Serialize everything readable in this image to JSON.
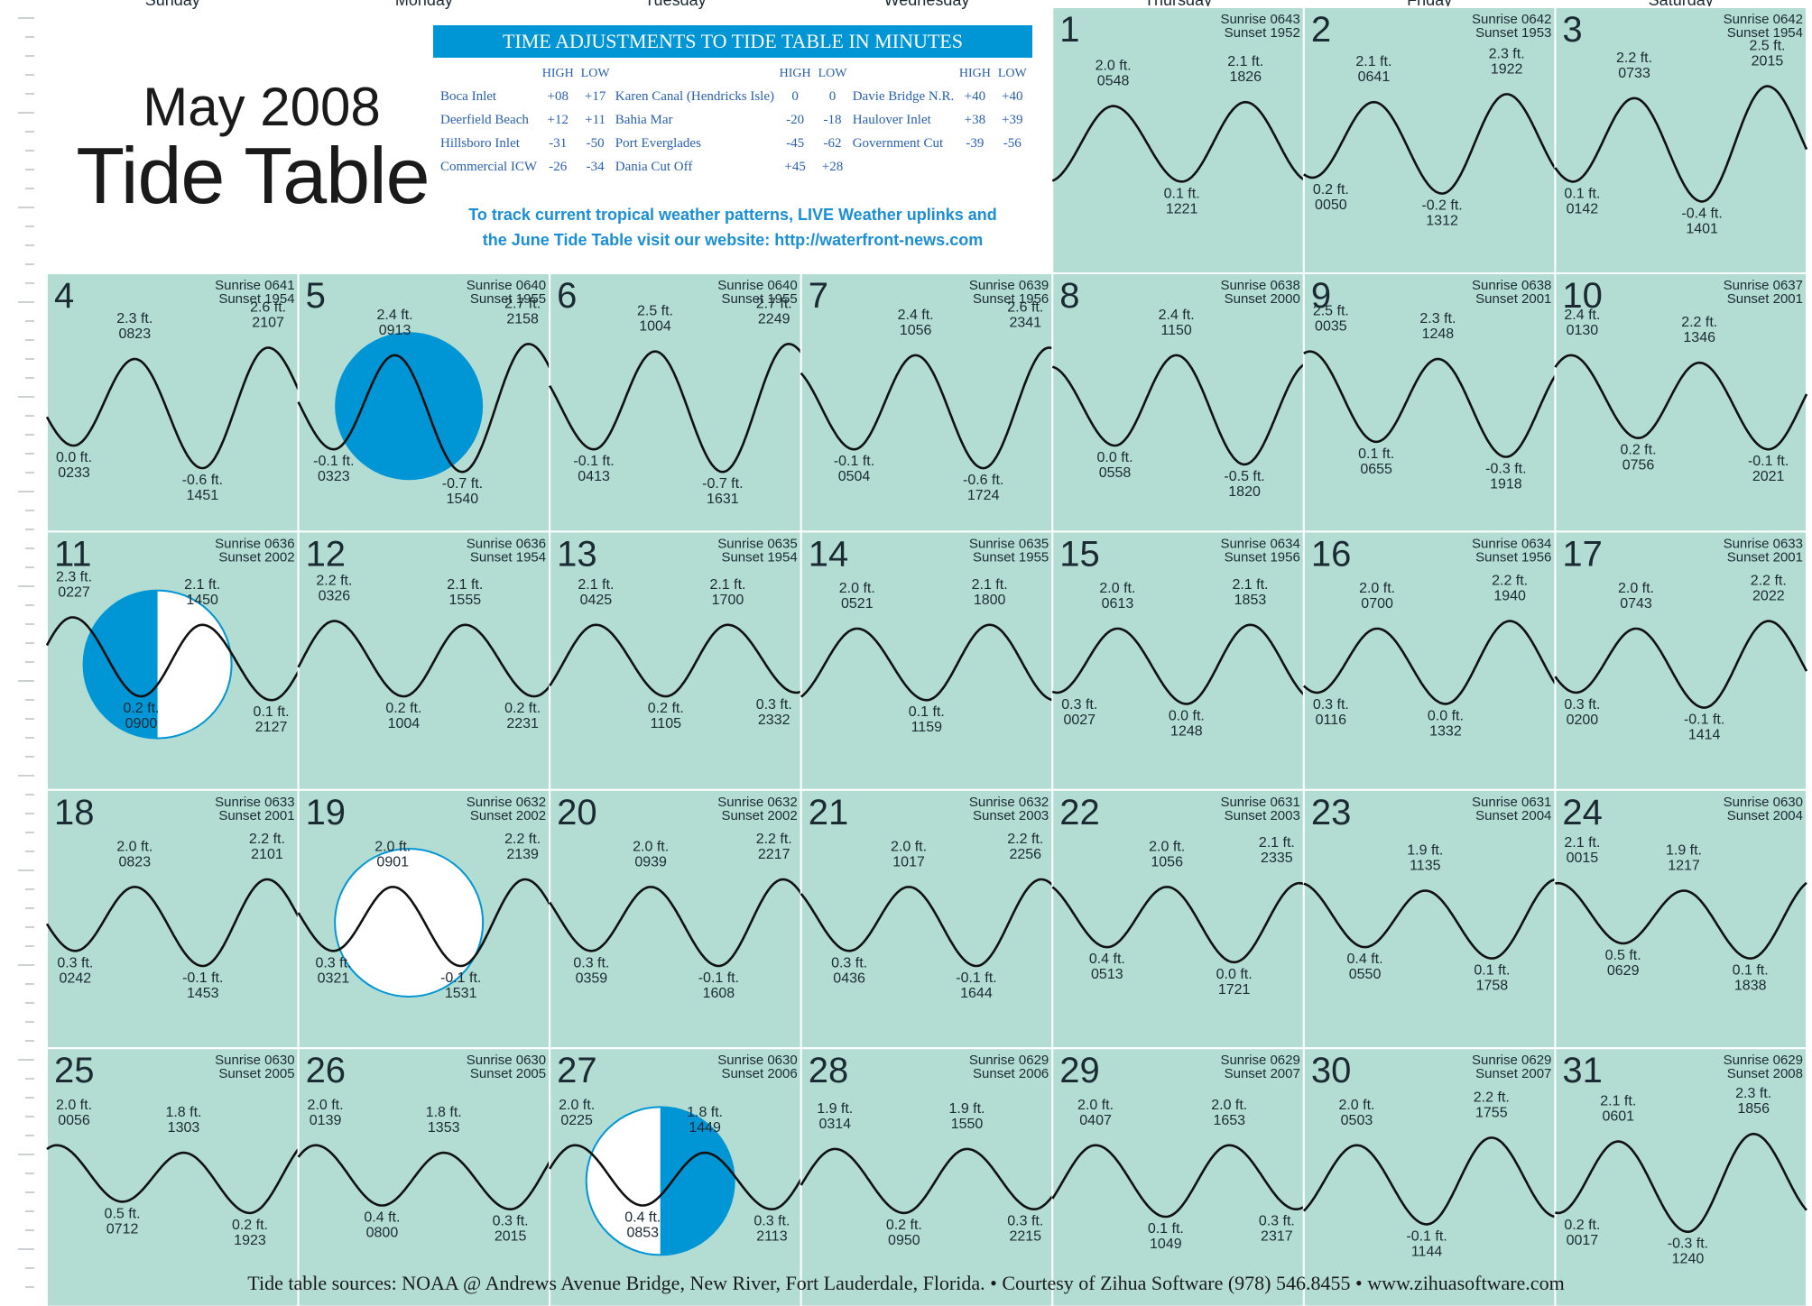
{
  "title": {
    "month": "May 2008",
    "main": "Tide Table"
  },
  "weekdays": [
    "Sunday",
    "Monday",
    "Tuesday",
    "Wednesday",
    "Thursday",
    "Friday",
    "Saturday"
  ],
  "adjustments": {
    "header": "TIME ADJUSTMENTS TO TIDE TABLE IN MINUTES",
    "col_high": "HIGH",
    "col_low": "LOW",
    "rows": [
      [
        {
          "name": "Boca Inlet",
          "high": "+08",
          "low": "+17"
        },
        {
          "name": "Karen Canal (Hendricks Isle)",
          "high": "0",
          "low": "0"
        },
        {
          "name": "Davie Bridge N.R.",
          "high": "+40",
          "low": "+40"
        }
      ],
      [
        {
          "name": "Deerfield Beach",
          "high": "+12",
          "low": "+11"
        },
        {
          "name": "Bahia Mar",
          "high": "-20",
          "low": "-18"
        },
        {
          "name": "Haulover Inlet",
          "high": "+38",
          "low": "+39"
        }
      ],
      [
        {
          "name": "Hillsboro Inlet",
          "high": "-31",
          "low": "-50"
        },
        {
          "name": "Port Everglades",
          "high": "-45",
          "low": "-62"
        },
        {
          "name": "Government Cut",
          "high": "-39",
          "low": "-56"
        }
      ],
      [
        {
          "name": "Commercial ICW",
          "high": "-26",
          "low": "-34"
        },
        {
          "name": "Dania Cut Off",
          "high": "+45",
          "low": "+28"
        },
        {
          "name": "",
          "high": "",
          "low": ""
        }
      ]
    ]
  },
  "web_note": {
    "line1": "To track current tropical weather patterns, LIVE Weather uplinks and",
    "line2": "the June Tide Table visit our website: http://waterfront-news.com"
  },
  "footer": "Tide table sources: NOAA @ Andrews Avenue Bridge, New River, Fort Lauderdale, Florida. • Courtesy of Zihua Software (978) 546.8455 • www.zihuasoftware.com",
  "colors": {
    "cell_bg": "#b3ddd3",
    "grid": "#ffffff",
    "curve": "#111111",
    "moon": "#0096d6",
    "accent": "#0096d6"
  },
  "chart_data": {
    "type": "line",
    "title": "Tide Table",
    "x_unit": "time (hhmm)",
    "y_unit": "ft",
    "first_weekday_index": 4,
    "moon_phases": [
      {
        "day": 5,
        "phase": "new"
      },
      {
        "day": 11,
        "phase": "first-quarter"
      },
      {
        "day": 19,
        "phase": "full"
      },
      {
        "day": 27,
        "phase": "last-quarter"
      }
    ],
    "days": [
      {
        "day": 1,
        "sunrise": "0643",
        "sunset": "1952",
        "tides": [
          [
            "0548",
            "2.0 ft."
          ],
          [
            "1221",
            "0.1 ft."
          ],
          [
            "1826",
            "2.1 ft."
          ]
        ]
      },
      {
        "day": 2,
        "sunrise": "0642",
        "sunset": "1953",
        "tides": [
          [
            "0050",
            "0.2 ft."
          ],
          [
            "0641",
            "2.1 ft."
          ],
          [
            "1312",
            "-0.2 ft."
          ],
          [
            "1922",
            "2.3 ft."
          ]
        ]
      },
      {
        "day": 3,
        "sunrise": "0642",
        "sunset": "1954",
        "tides": [
          [
            "0142",
            "0.1 ft."
          ],
          [
            "0733",
            "2.2 ft."
          ],
          [
            "1401",
            "-0.4 ft."
          ],
          [
            "2015",
            "2.5 ft."
          ]
        ]
      },
      {
        "day": 4,
        "sunrise": "0641",
        "sunset": "1954",
        "tides": [
          [
            "0233",
            "0.0 ft."
          ],
          [
            "0823",
            "2.3 ft."
          ],
          [
            "1451",
            "-0.6 ft."
          ],
          [
            "2107",
            "2.6 ft."
          ]
        ]
      },
      {
        "day": 5,
        "sunrise": "0640",
        "sunset": "1955",
        "tides": [
          [
            "0323",
            "-0.1 ft."
          ],
          [
            "0913",
            "2.4 ft."
          ],
          [
            "1540",
            "-0.7 ft."
          ],
          [
            "2158",
            "2.7 ft."
          ]
        ]
      },
      {
        "day": 6,
        "sunrise": "0640",
        "sunset": "1955",
        "tides": [
          [
            "0413",
            "-0.1 ft."
          ],
          [
            "1004",
            "2.5 ft."
          ],
          [
            "1631",
            "-0.7 ft."
          ],
          [
            "2249",
            "2.7 ft."
          ]
        ]
      },
      {
        "day": 7,
        "sunrise": "0639",
        "sunset": "1956",
        "tides": [
          [
            "0504",
            "-0.1 ft."
          ],
          [
            "1056",
            "2.4 ft."
          ],
          [
            "1724",
            "-0.6 ft."
          ],
          [
            "2341",
            "2.6 ft."
          ]
        ]
      },
      {
        "day": 8,
        "sunrise": "0638",
        "sunset": "2000",
        "tides": [
          [
            "0558",
            "0.0 ft."
          ],
          [
            "1150",
            "2.4 ft."
          ],
          [
            "1820",
            "-0.5 ft."
          ]
        ]
      },
      {
        "day": 9,
        "sunrise": "0638",
        "sunset": "2001",
        "tides": [
          [
            "0035",
            "2.5 ft."
          ],
          [
            "0655",
            "0.1 ft."
          ],
          [
            "1248",
            "2.3 ft."
          ],
          [
            "1918",
            "-0.3 ft."
          ]
        ]
      },
      {
        "day": 10,
        "sunrise": "0637",
        "sunset": "2001",
        "tides": [
          [
            "0130",
            "2.4 ft."
          ],
          [
            "0756",
            "0.2 ft."
          ],
          [
            "1346",
            "2.2 ft."
          ],
          [
            "2021",
            "-0.1 ft."
          ]
        ]
      },
      {
        "day": 11,
        "sunrise": "0636",
        "sunset": "2002",
        "tides": [
          [
            "0227",
            "2.3 ft."
          ],
          [
            "0900",
            "0.2 ft."
          ],
          [
            "1450",
            "2.1 ft."
          ],
          [
            "2127",
            "0.1 ft."
          ]
        ]
      },
      {
        "day": 12,
        "sunrise": "0636",
        "sunset": "1954",
        "tides": [
          [
            "0326",
            "2.2 ft."
          ],
          [
            "1004",
            "0.2 ft."
          ],
          [
            "1555",
            "2.1 ft."
          ],
          [
            "2231",
            "0.2 ft."
          ]
        ]
      },
      {
        "day": 13,
        "sunrise": "0635",
        "sunset": "1954",
        "tides": [
          [
            "0425",
            "2.1 ft."
          ],
          [
            "1105",
            "0.2 ft."
          ],
          [
            "1700",
            "2.1 ft."
          ],
          [
            "2332",
            "0.3 ft."
          ]
        ]
      },
      {
        "day": 14,
        "sunrise": "0635",
        "sunset": "1955",
        "tides": [
          [
            "0521",
            "2.0 ft."
          ],
          [
            "1159",
            "0.1 ft."
          ],
          [
            "1800",
            "2.1 ft."
          ]
        ]
      },
      {
        "day": 15,
        "sunrise": "0634",
        "sunset": "1956",
        "tides": [
          [
            "0027",
            "0.3 ft."
          ],
          [
            "0613",
            "2.0 ft."
          ],
          [
            "1248",
            "0.0 ft."
          ],
          [
            "1853",
            "2.1 ft."
          ]
        ]
      },
      {
        "day": 16,
        "sunrise": "0634",
        "sunset": "1956",
        "tides": [
          [
            "0116",
            "0.3 ft."
          ],
          [
            "0700",
            "2.0 ft."
          ],
          [
            "1332",
            "0.0 ft."
          ],
          [
            "1940",
            "2.2 ft."
          ]
        ]
      },
      {
        "day": 17,
        "sunrise": "0633",
        "sunset": "2001",
        "tides": [
          [
            "0200",
            "0.3 ft."
          ],
          [
            "0743",
            "2.0 ft."
          ],
          [
            "1414",
            "-0.1 ft."
          ],
          [
            "2022",
            "2.2 ft."
          ]
        ]
      },
      {
        "day": 18,
        "sunrise": "0633",
        "sunset": "2001",
        "tides": [
          [
            "0242",
            "0.3 ft."
          ],
          [
            "0823",
            "2.0 ft."
          ],
          [
            "1453",
            "-0.1 ft."
          ],
          [
            "2101",
            "2.2 ft."
          ]
        ]
      },
      {
        "day": 19,
        "sunrise": "0632",
        "sunset": "2002",
        "tides": [
          [
            "0321",
            "0.3 ft."
          ],
          [
            "0901",
            "2.0 ft."
          ],
          [
            "1531",
            "-0.1 ft."
          ],
          [
            "2139",
            "2.2 ft."
          ]
        ]
      },
      {
        "day": 20,
        "sunrise": "0632",
        "sunset": "2002",
        "tides": [
          [
            "0359",
            "0.3 ft."
          ],
          [
            "0939",
            "2.0 ft."
          ],
          [
            "1608",
            "-0.1 ft."
          ],
          [
            "2217",
            "2.2 ft."
          ]
        ]
      },
      {
        "day": 21,
        "sunrise": "0632",
        "sunset": "2003",
        "tides": [
          [
            "0436",
            "0.3 ft."
          ],
          [
            "1017",
            "2.0 ft."
          ],
          [
            "1644",
            "-0.1 ft."
          ],
          [
            "2256",
            "2.2 ft."
          ]
        ]
      },
      {
        "day": 22,
        "sunrise": "0631",
        "sunset": "2003",
        "tides": [
          [
            "0513",
            "0.4 ft."
          ],
          [
            "1056",
            "2.0 ft."
          ],
          [
            "1721",
            "0.0 ft."
          ],
          [
            "2335",
            "2.1 ft."
          ]
        ]
      },
      {
        "day": 23,
        "sunrise": "0631",
        "sunset": "2004",
        "tides": [
          [
            "0550",
            "0.4 ft."
          ],
          [
            "1135",
            "1.9 ft."
          ],
          [
            "1758",
            "0.1 ft."
          ]
        ]
      },
      {
        "day": 24,
        "sunrise": "0630",
        "sunset": "2004",
        "tides": [
          [
            "0015",
            "2.1 ft."
          ],
          [
            "0629",
            "0.5 ft."
          ],
          [
            "1217",
            "1.9 ft."
          ],
          [
            "1838",
            "0.1 ft."
          ]
        ]
      },
      {
        "day": 25,
        "sunrise": "0630",
        "sunset": "2005",
        "tides": [
          [
            "0056",
            "2.0 ft."
          ],
          [
            "0712",
            "0.5 ft."
          ],
          [
            "1303",
            "1.8 ft."
          ],
          [
            "1923",
            "0.2 ft."
          ]
        ]
      },
      {
        "day": 26,
        "sunrise": "0630",
        "sunset": "2005",
        "tides": [
          [
            "0139",
            "2.0 ft."
          ],
          [
            "0800",
            "0.4 ft."
          ],
          [
            "1353",
            "1.8 ft."
          ],
          [
            "2015",
            "0.3 ft."
          ]
        ]
      },
      {
        "day": 27,
        "sunrise": "0630",
        "sunset": "2006",
        "tides": [
          [
            "0225",
            "2.0 ft."
          ],
          [
            "0853",
            "0.4 ft."
          ],
          [
            "1449",
            "1.8 ft."
          ],
          [
            "2113",
            "0.3 ft."
          ]
        ]
      },
      {
        "day": 28,
        "sunrise": "0629",
        "sunset": "2006",
        "tides": [
          [
            "0314",
            "1.9 ft."
          ],
          [
            "0950",
            "0.2 ft."
          ],
          [
            "1550",
            "1.9 ft."
          ],
          [
            "2215",
            "0.3 ft."
          ]
        ]
      },
      {
        "day": 29,
        "sunrise": "0629",
        "sunset": "2007",
        "tides": [
          [
            "0407",
            "2.0 ft."
          ],
          [
            "1049",
            "0.1 ft."
          ],
          [
            "1653",
            "2.0 ft."
          ],
          [
            "2317",
            "0.3 ft."
          ]
        ]
      },
      {
        "day": 30,
        "sunrise": "0629",
        "sunset": "2007",
        "tides": [
          [
            "0503",
            "2.0 ft."
          ],
          [
            "1144",
            "-0.1 ft."
          ],
          [
            "1755",
            "2.2 ft."
          ]
        ]
      },
      {
        "day": 31,
        "sunrise": "0629",
        "sunset": "2008",
        "tides": [
          [
            "0017",
            "0.2 ft."
          ],
          [
            "0601",
            "2.1 ft."
          ],
          [
            "1240",
            "-0.3 ft."
          ],
          [
            "1856",
            "2.3 ft."
          ]
        ]
      }
    ]
  }
}
